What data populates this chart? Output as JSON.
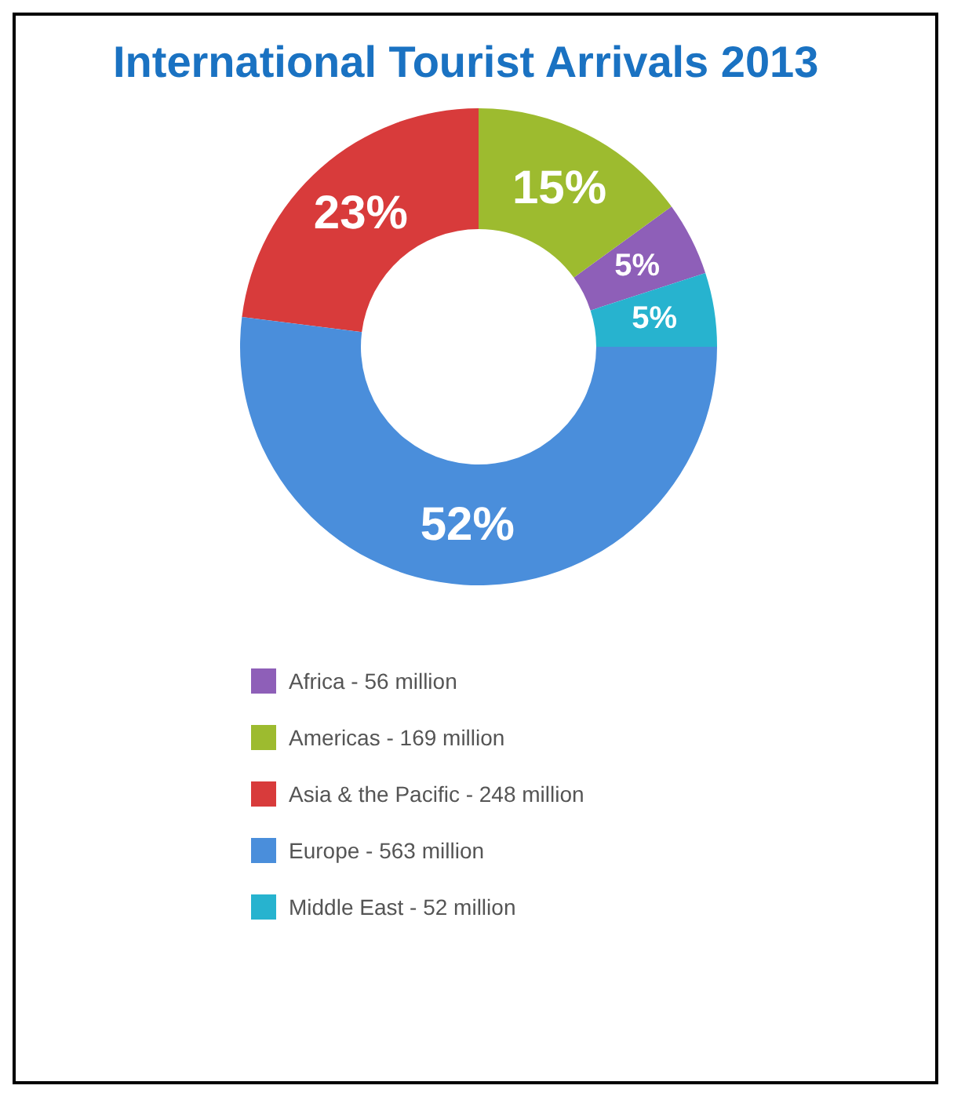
{
  "chart_data": {
    "type": "donut",
    "title": "International Tourist Arrivals 2013",
    "categories": [
      "Africa - 56 million",
      "Americas - 169 million",
      "Asia & the Pacific - 248 million",
      "Europe - 563 million",
      "Middle East - 52 million"
    ],
    "values": [
      5,
      15,
      23,
      52,
      5
    ],
    "value_labels": [
      "5%",
      "15%",
      "23%",
      "52%",
      "5%"
    ],
    "colors": [
      "#8e5fb8",
      "#9dbb2f",
      "#d83b3b",
      "#4a8edb",
      "#27b3cf"
    ],
    "legend": "bottom"
  }
}
